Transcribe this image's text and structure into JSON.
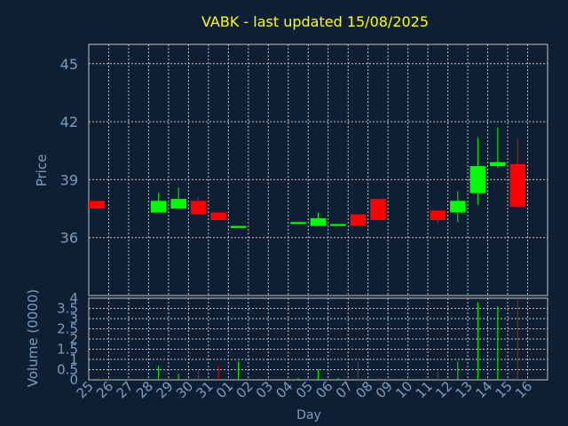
{
  "chart_data": {
    "type": "candlestick",
    "title": "VABK - last updated 15/08/2025",
    "xlabel": "Day",
    "ylabel": "Price",
    "volume_label": "Volume (0000)",
    "categories": [
      "25",
      "26",
      "27",
      "28",
      "29",
      "30",
      "31",
      "01",
      "02",
      "03",
      "04",
      "05",
      "06",
      "07",
      "08",
      "09",
      "10",
      "11",
      "12",
      "13",
      "14",
      "15",
      "16"
    ],
    "price_ylim": [
      33,
      46
    ],
    "price_ticks": [
      36,
      39,
      42,
      45
    ],
    "volume_ylim": [
      0,
      4
    ],
    "volume_ticks": [
      0,
      0.5,
      1,
      1.5,
      2,
      2.5,
      3,
      3.5,
      4
    ],
    "candles": [
      {
        "day": "25",
        "open": 37.9,
        "close": 37.5,
        "high": 37.9,
        "low": 37.5,
        "volume": 0.1
      },
      {
        "day": "28",
        "open": 37.3,
        "close": 37.9,
        "high": 38.3,
        "low": 37.3,
        "volume": 0.7
      },
      {
        "day": "29",
        "open": 37.5,
        "close": 38.0,
        "high": 38.6,
        "low": 37.5,
        "volume": 0.3
      },
      {
        "day": "30",
        "open": 37.9,
        "close": 37.2,
        "high": 38.1,
        "low": 37.2,
        "volume": 0.5
      },
      {
        "day": "31",
        "open": 37.3,
        "close": 36.9,
        "high": 37.3,
        "low": 36.9,
        "volume": 0.7
      },
      {
        "day": "01",
        "open": 36.5,
        "close": 36.6,
        "high": 36.6,
        "low": 36.5,
        "volume": 0.9
      },
      {
        "day": "04",
        "open": 36.7,
        "close": 36.8,
        "high": 36.8,
        "low": 36.7,
        "volume": 0.1
      },
      {
        "day": "05",
        "open": 36.6,
        "close": 37.0,
        "high": 37.3,
        "low": 36.6,
        "volume": 0.5
      },
      {
        "day": "06",
        "open": 36.6,
        "close": 36.7,
        "high": 36.7,
        "low": 36.6,
        "volume": 0.1
      },
      {
        "day": "07",
        "open": 37.2,
        "close": 36.6,
        "high": 37.2,
        "low": 36.6,
        "volume": 0.9
      },
      {
        "day": "08",
        "open": 38.0,
        "close": 36.9,
        "high": 38.0,
        "low": 36.9,
        "volume": 0.1
      },
      {
        "day": "11",
        "open": 37.4,
        "close": 36.9,
        "high": 37.4,
        "low": 36.7,
        "volume": 0.4
      },
      {
        "day": "12",
        "open": 37.3,
        "close": 37.9,
        "high": 38.4,
        "low": 36.8,
        "volume": 0.9
      },
      {
        "day": "13",
        "open": 38.3,
        "close": 39.7,
        "high": 41.2,
        "low": 37.7,
        "volume": 3.8
      },
      {
        "day": "14",
        "open": 39.7,
        "close": 39.9,
        "high": 41.7,
        "low": 39.6,
        "volume": 3.6
      },
      {
        "day": "15",
        "open": 39.8,
        "close": 37.6,
        "high": 41.1,
        "low": 37.6,
        "volume": 3.9
      }
    ],
    "colors": {
      "background": "#0f1f33",
      "up": "#00ff00",
      "down": "#ff0000",
      "title": "#ffff00",
      "axis_text": "#7a9ec0",
      "grid": "#c0c0c0"
    },
    "grid": true
  }
}
